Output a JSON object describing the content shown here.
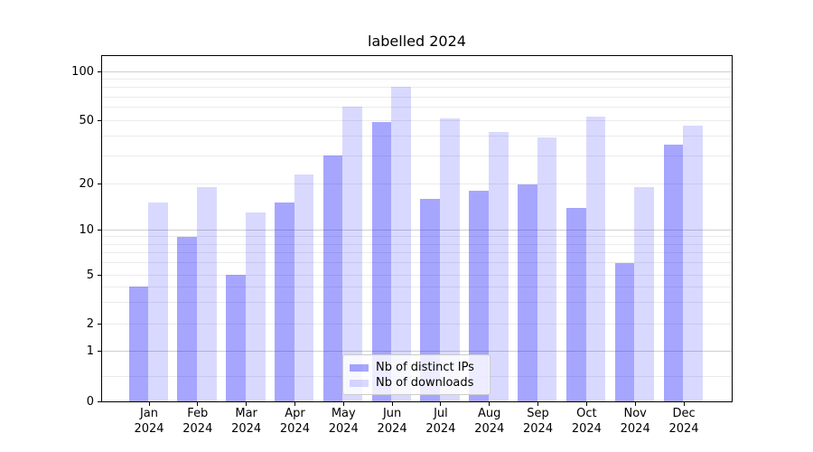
{
  "title": "labelled 2024",
  "legend": {
    "position": "lower center",
    "items": [
      {
        "label": "Nb of distinct IPs",
        "color": "rgba(0,0,255,0.35)",
        "color_on_white": "#a6a6ff"
      },
      {
        "label": "Nb of downloads",
        "color": "rgba(0,0,255,0.15)",
        "color_on_white": "#d9d9ff"
      }
    ]
  },
  "chart_data": {
    "type": "bar",
    "title": "labelled 2024",
    "categories": [
      "Jan 2024",
      "Feb 2024",
      "Mar 2024",
      "Apr 2024",
      "May 2024",
      "Jun 2024",
      "Jul 2024",
      "Aug 2024",
      "Sep 2024",
      "Oct 2024",
      "Nov 2024",
      "Dec 2024"
    ],
    "series": [
      {
        "name": "Nb of distinct IPs",
        "color": "rgba(0,0,255,0.35)",
        "values": [
          4,
          9,
          5,
          15,
          30,
          49,
          16,
          18,
          20,
          14,
          6,
          35
        ]
      },
      {
        "name": "Nb of downloads",
        "color": "rgba(0,0,255,0.15)",
        "values": [
          15,
          19,
          13,
          23,
          61,
          81,
          51,
          42,
          39,
          53,
          19,
          46
        ]
      }
    ],
    "xlabel": "",
    "ylabel": "",
    "yscale": "asinh (log-like above 1, linear near 0)",
    "ylim": [
      0,
      127
    ],
    "yticks": [
      0,
      1,
      2,
      5,
      10,
      20,
      50,
      100
    ],
    "ytick_labels": [
      "0",
      "1",
      "2",
      "5",
      "10",
      "20",
      "50",
      "100"
    ],
    "gridlines": {
      "major_values": [
        1,
        10,
        100
      ],
      "minor_values": [
        0.5,
        2,
        3,
        4,
        5,
        6,
        7,
        8,
        9,
        20,
        30,
        40,
        50,
        60,
        70,
        80,
        90
      ],
      "major_color": "#cfcfcf",
      "minor_color": "#ebebeb"
    },
    "legend_entries": [
      "Nb of distinct IPs",
      "Nb of downloads"
    ],
    "grid": "on",
    "bar_layout": "grouped side-by-side, translucent blue fills"
  }
}
